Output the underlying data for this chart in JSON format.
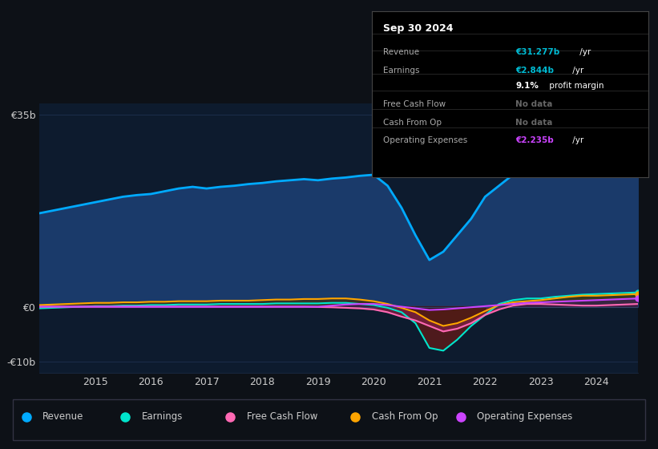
{
  "background_color": "#0d1117",
  "plot_bg_color": "#0d1b2e",
  "years": [
    2014.0,
    2014.25,
    2014.5,
    2014.75,
    2015.0,
    2015.25,
    2015.5,
    2015.75,
    2016.0,
    2016.25,
    2016.5,
    2016.75,
    2017.0,
    2017.25,
    2017.5,
    2017.75,
    2018.0,
    2018.25,
    2018.5,
    2018.75,
    2019.0,
    2019.25,
    2019.5,
    2019.75,
    2020.0,
    2020.25,
    2020.5,
    2020.75,
    2021.0,
    2021.25,
    2021.5,
    2021.75,
    2022.0,
    2022.25,
    2022.5,
    2022.75,
    2023.0,
    2023.25,
    2023.5,
    2023.75,
    2024.0,
    2024.25,
    2024.5,
    2024.75
  ],
  "revenue": [
    17.0,
    17.5,
    18.0,
    18.5,
    19.0,
    19.5,
    20.0,
    20.3,
    20.5,
    21.0,
    21.5,
    21.8,
    21.5,
    21.8,
    22.0,
    22.3,
    22.5,
    22.8,
    23.0,
    23.2,
    23.0,
    23.3,
    23.5,
    23.8,
    24.0,
    22.0,
    18.0,
    13.0,
    8.5,
    10.0,
    13.0,
    16.0,
    20.0,
    22.0,
    24.0,
    25.5,
    26.0,
    27.5,
    29.0,
    31.0,
    32.0,
    33.0,
    33.5,
    34.5
  ],
  "earnings": [
    -0.3,
    -0.2,
    -0.1,
    0.0,
    0.1,
    0.1,
    0.2,
    0.2,
    0.3,
    0.3,
    0.4,
    0.4,
    0.4,
    0.5,
    0.5,
    0.5,
    0.5,
    0.6,
    0.6,
    0.6,
    0.6,
    0.7,
    0.7,
    0.5,
    0.3,
    -0.2,
    -1.0,
    -3.0,
    -7.5,
    -8.0,
    -6.0,
    -3.5,
    -1.5,
    0.5,
    1.2,
    1.5,
    1.5,
    1.8,
    2.0,
    2.2,
    2.3,
    2.4,
    2.5,
    2.6
  ],
  "free_cash_flow": [
    0.0,
    0.0,
    0.0,
    0.0,
    0.0,
    0.0,
    0.0,
    0.0,
    0.0,
    0.0,
    0.0,
    0.0,
    0.0,
    0.0,
    0.0,
    0.0,
    0.0,
    0.0,
    0.0,
    0.0,
    -0.05,
    -0.1,
    -0.2,
    -0.3,
    -0.5,
    -1.0,
    -1.8,
    -2.5,
    -3.5,
    -4.5,
    -4.0,
    -3.0,
    -1.5,
    -0.5,
    0.2,
    0.5,
    0.5,
    0.4,
    0.3,
    0.2,
    0.2,
    0.3,
    0.4,
    0.5
  ],
  "cash_from_op": [
    0.3,
    0.4,
    0.5,
    0.6,
    0.7,
    0.7,
    0.8,
    0.8,
    0.9,
    0.9,
    1.0,
    1.0,
    1.0,
    1.1,
    1.1,
    1.1,
    1.2,
    1.3,
    1.3,
    1.4,
    1.4,
    1.5,
    1.5,
    1.3,
    1.0,
    0.5,
    -0.2,
    -1.0,
    -2.5,
    -3.5,
    -3.0,
    -2.0,
    -0.8,
    0.3,
    0.8,
    1.0,
    1.2,
    1.5,
    1.8,
    2.0,
    2.0,
    2.1,
    2.2,
    2.3
  ],
  "op_expenses": [
    0.0,
    0.0,
    0.0,
    0.0,
    0.0,
    0.0,
    0.0,
    0.0,
    0.0,
    0.0,
    0.0,
    0.0,
    0.0,
    0.0,
    0.0,
    0.0,
    0.0,
    0.0,
    0.0,
    0.0,
    0.0,
    0.2,
    0.4,
    0.5,
    0.5,
    0.3,
    0.0,
    -0.3,
    -0.6,
    -0.5,
    -0.3,
    -0.1,
    0.1,
    0.3,
    0.5,
    0.7,
    0.8,
    0.9,
    1.0,
    1.1,
    1.2,
    1.3,
    1.4,
    1.5
  ],
  "ylim": [
    -12,
    37
  ],
  "yticks": [
    -10,
    0,
    35
  ],
  "ytick_labels": [
    "-€10b",
    "€0",
    "€35b"
  ],
  "xticks": [
    2015,
    2016,
    2017,
    2018,
    2019,
    2020,
    2021,
    2022,
    2023,
    2024
  ],
  "revenue_color": "#00aaff",
  "revenue_fill": "#1a3a6a",
  "earnings_color": "#00e5cc",
  "earnings_fill_pos": "#1a4a3a",
  "earnings_fill_neg": "#5a1a1a",
  "free_cash_flow_color": "#ff69b4",
  "free_cash_flow_fill_neg": "#7a2040",
  "cash_from_op_color": "#ffa500",
  "cash_from_op_fill_pos": "#4a3000",
  "cash_from_op_fill_neg": "#3a1a00",
  "op_expenses_color": "#cc44ff",
  "op_expenses_fill_pos": "#3a1a5a",
  "grid_color": "#1e3050",
  "text_color": "#cccccc",
  "legend_items": [
    {
      "label": "Revenue",
      "color": "#00aaff"
    },
    {
      "label": "Earnings",
      "color": "#00e5cc"
    },
    {
      "label": "Free Cash Flow",
      "color": "#ff69b4"
    },
    {
      "label": "Cash From Op",
      "color": "#ffa500"
    },
    {
      "label": "Operating Expenses",
      "color": "#cc44ff"
    }
  ],
  "infobox": {
    "date": "Sep 30 2024",
    "rows": [
      {
        "label": "Revenue",
        "value": "€31.277b",
        "suffix": " /yr",
        "val_color": "#00bcd4",
        "nodata": false
      },
      {
        "label": "Earnings",
        "value": "€2.844b",
        "suffix": " /yr",
        "val_color": "#00bcd4",
        "nodata": false
      },
      {
        "label": "",
        "value": "9.1%",
        "suffix": " profit margin",
        "val_color": "white",
        "nodata": false
      },
      {
        "label": "Free Cash Flow",
        "value": "No data",
        "suffix": "",
        "val_color": "#666666",
        "nodata": true
      },
      {
        "label": "Cash From Op",
        "value": "No data",
        "suffix": "",
        "val_color": "#666666",
        "nodata": true
      },
      {
        "label": "Operating Expenses",
        "value": "€2.235b",
        "suffix": " /yr",
        "val_color": "#cc44ff",
        "nodata": false
      }
    ]
  }
}
